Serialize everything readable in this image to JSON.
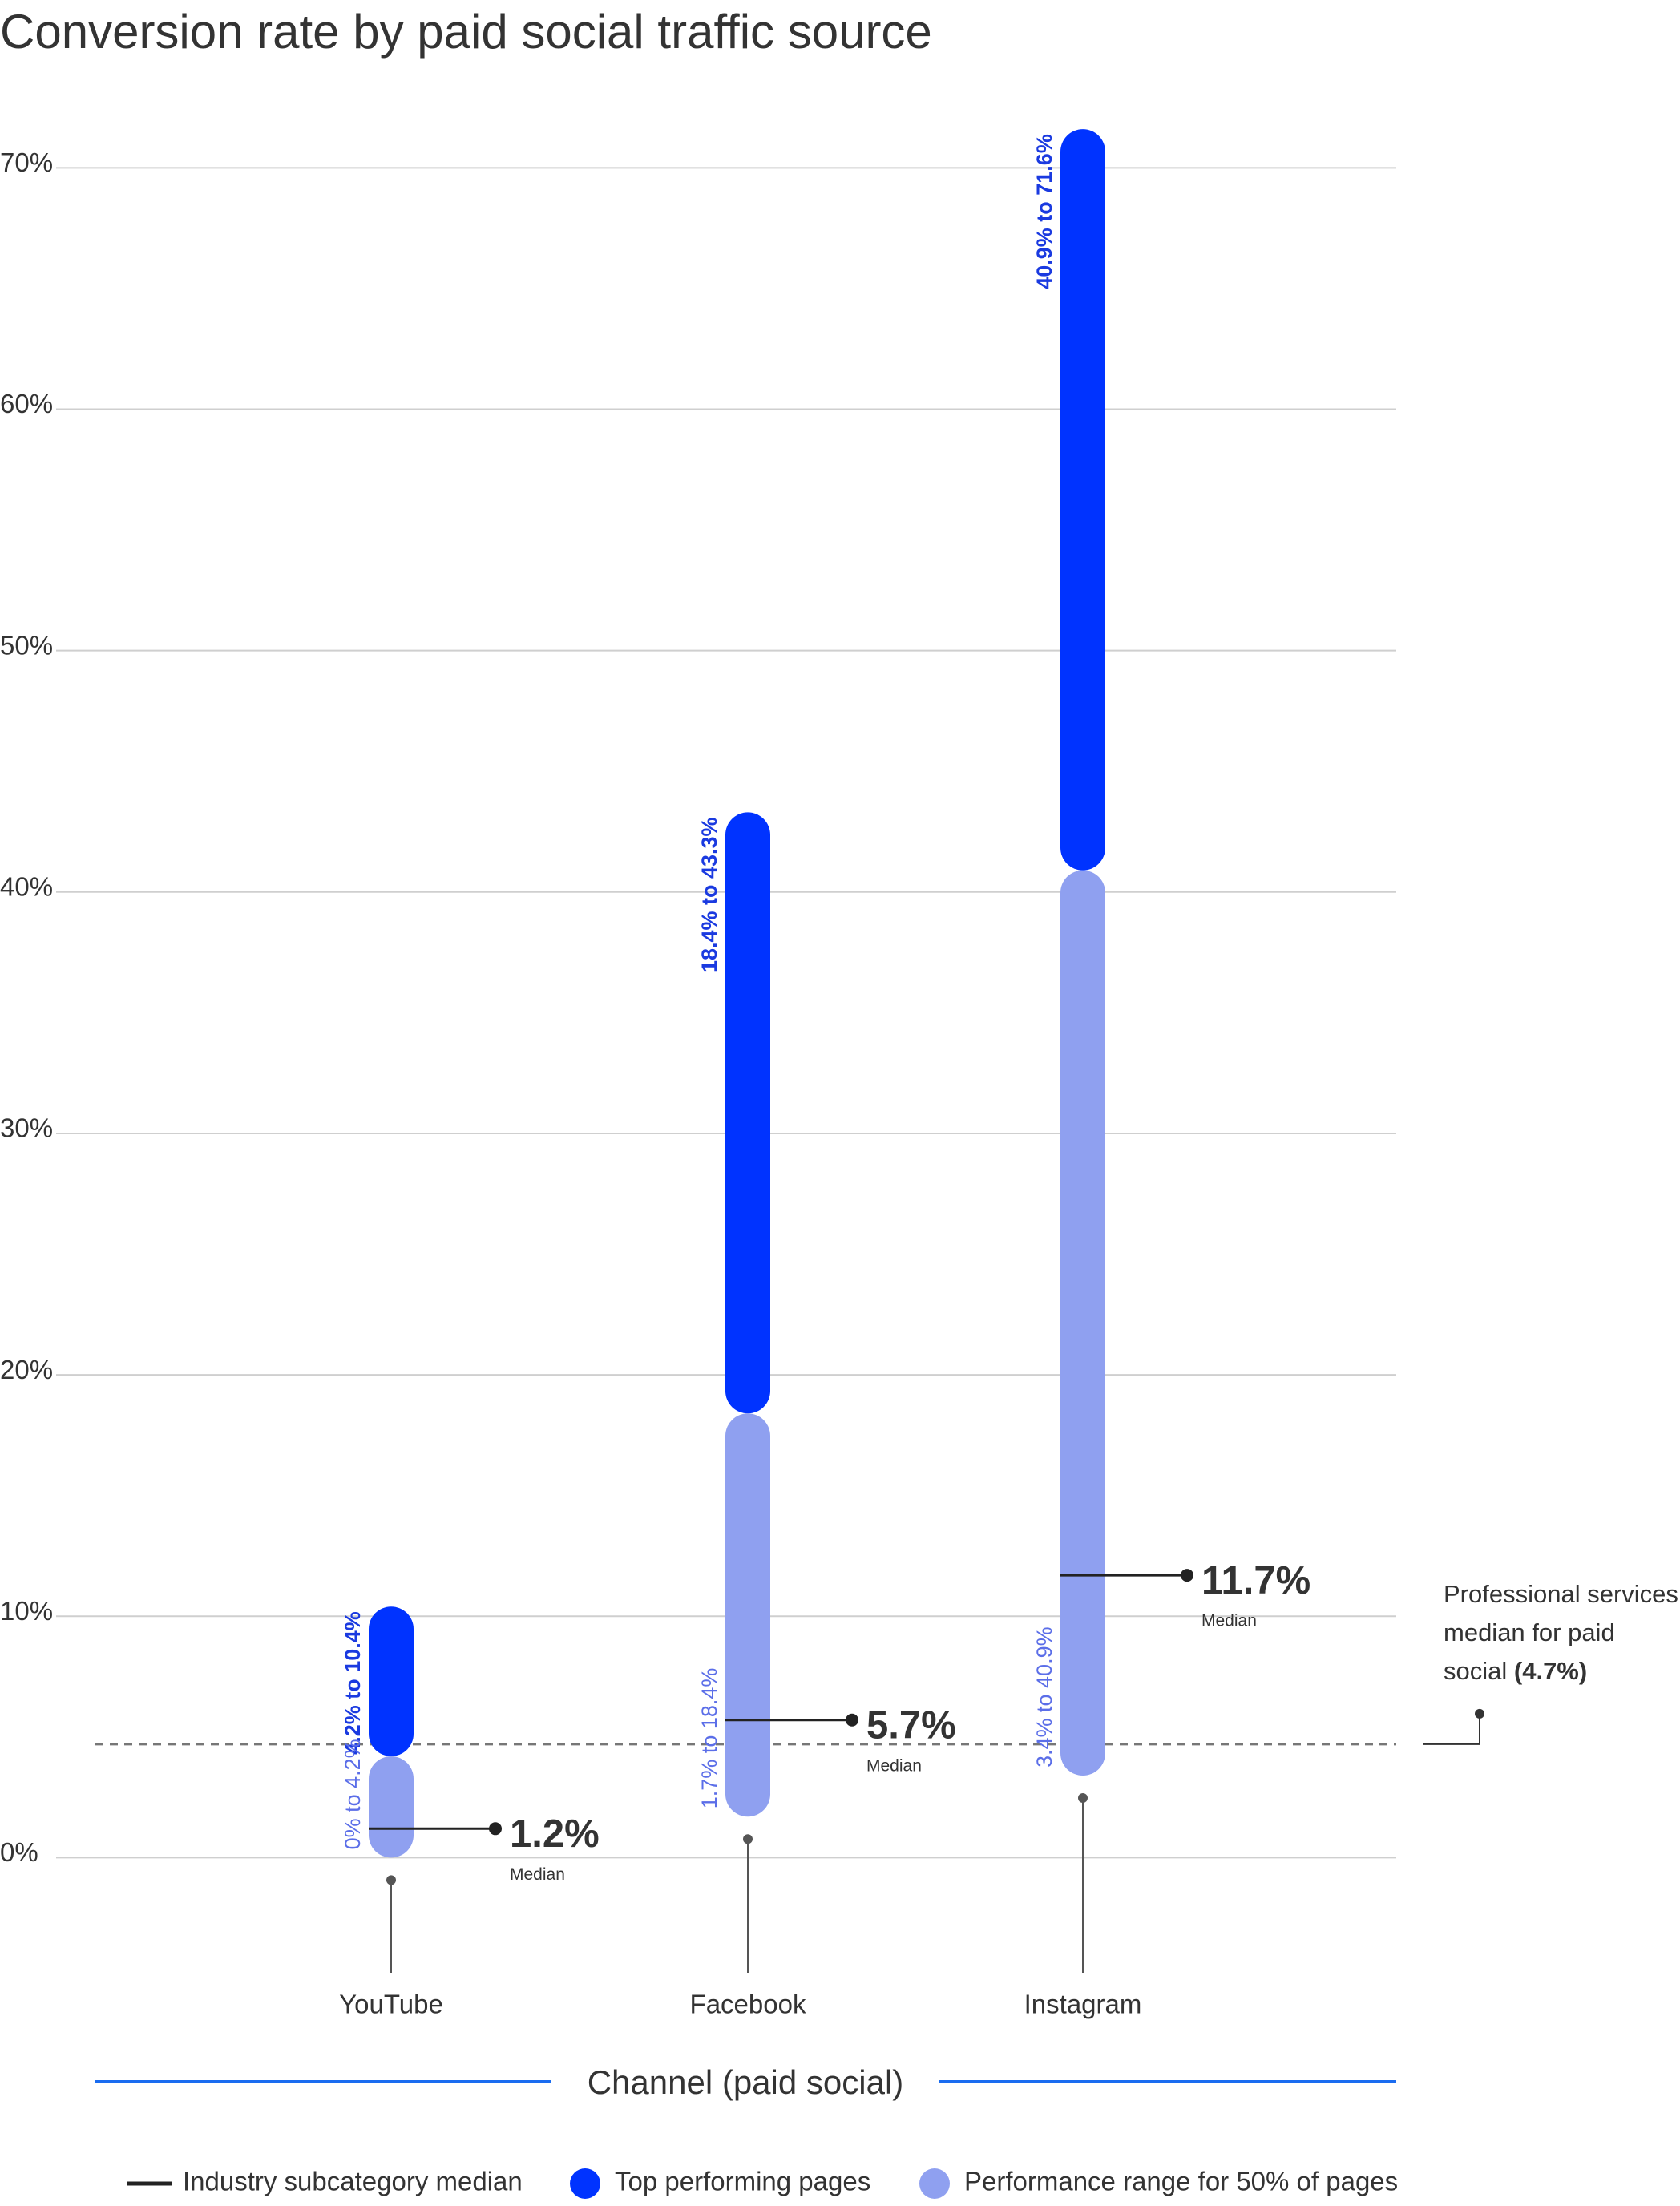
{
  "chart_data": {
    "type": "range_bar",
    "title": "Conversion rate by paid social traffic source",
    "x_label": "Channel (paid social)",
    "categories": [
      "YouTube",
      "Facebook",
      "Instagram"
    ],
    "series": [
      {
        "name": "Top performing pages",
        "color": "#0033ff",
        "label_color": "#1a3ae0",
        "values": [
          [
            4.2,
            10.4
          ],
          [
            18.4,
            43.3
          ],
          [
            40.9,
            71.6
          ]
        ],
        "value_labels": [
          "4.2% to 10.4%",
          "18.4% to 43.3%",
          "40.9% to 71.6%"
        ]
      },
      {
        "name": "Performance range for 50% of pages",
        "color": "#8fa0f0",
        "label_color": "#5b6ee8",
        "values": [
          [
            0,
            4.2
          ],
          [
            1.7,
            18.4
          ],
          [
            3.4,
            40.9
          ]
        ],
        "value_labels": [
          "0% to 4.2%",
          "1.7% to 18.4%",
          "3.4% to 40.9%"
        ]
      }
    ],
    "medians": {
      "name": "Industry subcategory median",
      "label": "Median",
      "values": [
        1.2,
        5.7,
        11.7
      ],
      "value_labels": [
        "1.2%",
        "5.7%",
        "11.7%"
      ]
    },
    "reference_line": {
      "value": 4.7,
      "text": "Professional services median for paid social",
      "value_label": "(4.7%)"
    },
    "ylim": [
      -5,
      73
    ],
    "yticks": [
      {
        "value": 0,
        "label": "0%"
      },
      {
        "value": 10,
        "label": "10%"
      },
      {
        "value": 20,
        "label": "20%"
      },
      {
        "value": 30,
        "label": "30%"
      },
      {
        "value": 40,
        "label": "40%"
      },
      {
        "value": 50,
        "label": "50%"
      },
      {
        "value": 60,
        "label": "60%"
      },
      {
        "value": 70,
        "label": "70%"
      }
    ],
    "grid": true
  }
}
